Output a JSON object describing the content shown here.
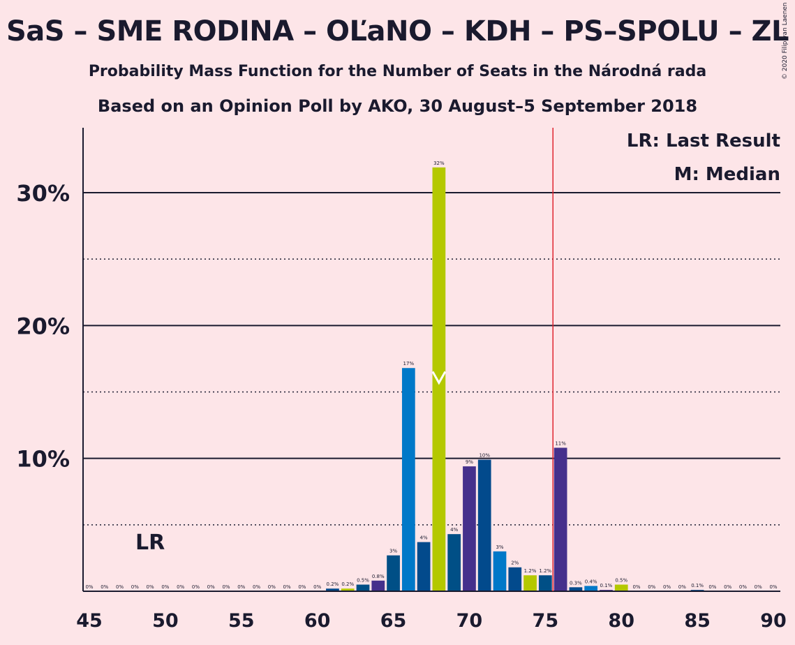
{
  "header": {
    "title": "SaS – SME RODINA – OĽaNO – KDH – PS–SPOLU – ZL",
    "subtitle": "Probability Mass Function for the Number of Seats in the Národná rada",
    "source": "Based on an Opinion Poll by AKO, 30 August–5 September 2018",
    "copyright": "© 2020 Filip van Laenen"
  },
  "chart_data": {
    "type": "bar",
    "title": "SaS – SME RODINA – OĽaNO – KDH – PS–SPOLU – ZL",
    "xlabel": "",
    "ylabel": "",
    "xlim": [
      45,
      90
    ],
    "ylim": [
      0,
      35
    ],
    "y_ticks": [
      10,
      20,
      30
    ],
    "y_tick_labels": [
      "10%",
      "20%",
      "30%"
    ],
    "y_dotted_lines": [
      5,
      15,
      25
    ],
    "x_ticks": [
      45,
      50,
      55,
      60,
      65,
      70,
      75,
      80,
      85,
      90
    ],
    "x_tick_labels": [
      "45",
      "50",
      "55",
      "60",
      "65",
      "70",
      "75",
      "80",
      "85",
      "90"
    ],
    "grid": true,
    "majority_line": 75.5,
    "majority_color": "#E0242F",
    "last_result": 49,
    "last_result_label": "LR",
    "median": 68,
    "legend": {
      "position": "top-right",
      "entries": [
        "LR: Last Result",
        "M: Median"
      ]
    },
    "palette": [
      "#0078C8",
      "#024A8C",
      "#B4C800",
      "#004F86",
      "#45308C"
    ],
    "seats": [
      45,
      46,
      47,
      48,
      49,
      50,
      51,
      52,
      53,
      54,
      55,
      56,
      57,
      58,
      59,
      60,
      61,
      62,
      63,
      64,
      65,
      66,
      67,
      68,
      69,
      70,
      71,
      72,
      73,
      74,
      75,
      76,
      77,
      78,
      79,
      80,
      81,
      82,
      83,
      84,
      85,
      86,
      87,
      88,
      89,
      90
    ],
    "values": [
      0,
      0,
      0,
      0,
      0,
      0,
      0,
      0,
      0,
      0,
      0,
      0,
      0,
      0,
      0,
      0,
      0.2,
      0.2,
      0.5,
      0.8,
      2.7,
      16.8,
      3.7,
      31.9,
      4.3,
      9.4,
      9.9,
      3.0,
      1.8,
      1.2,
      1.2,
      10.8,
      0.3,
      0.4,
      0.1,
      0.5,
      0,
      0,
      0,
      0,
      0.1,
      0,
      0,
      0,
      0,
      0
    ],
    "labels": [
      "0%",
      "0%",
      "0%",
      "0%",
      "0%",
      "0%",
      "0%",
      "0%",
      "0%",
      "0%",
      "0%",
      "0%",
      "0%",
      "0%",
      "0%",
      "0%",
      "0.2%",
      "0.2%",
      "0.5%",
      "0.8%",
      "3%",
      "17%",
      "4%",
      "32%",
      "4%",
      "9%",
      "10%",
      "3%",
      "2%",
      "1.2%",
      "1.2%",
      "11%",
      "0.3%",
      "0.4%",
      "0.1%",
      "0.5%",
      "0%",
      "0%",
      "0%",
      "0%",
      "0.1%",
      "0%",
      "0%",
      "0%",
      "0%",
      "0%"
    ],
    "bar_colors": [
      "#004F86",
      "#45308C",
      "#0078C8",
      "#B4C800",
      "#024A8C",
      "#004F86",
      "#45308C",
      "#0078C8",
      "#B4C800",
      "#024A8C",
      "#004F86",
      "#45308C",
      "#0078C8",
      "#B4C800",
      "#024A8C",
      "#004F86",
      "#024A8C",
      "#B4C800",
      "#004F86",
      "#45308C",
      "#004F86",
      "#0078C8",
      "#024A8C",
      "#B4C800",
      "#004F86",
      "#45308C",
      "#024A8C",
      "#0078C8",
      "#024A8C",
      "#B4C800",
      "#004F86",
      "#45308C",
      "#024A8C",
      "#0078C8",
      "#45308C",
      "#B4C800",
      "#004F86",
      "#45308C",
      "#0078C8",
      "#B4C800",
      "#024A8C",
      "#004F86",
      "#45308C",
      "#0078C8",
      "#B4C800",
      "#024A8C"
    ]
  }
}
